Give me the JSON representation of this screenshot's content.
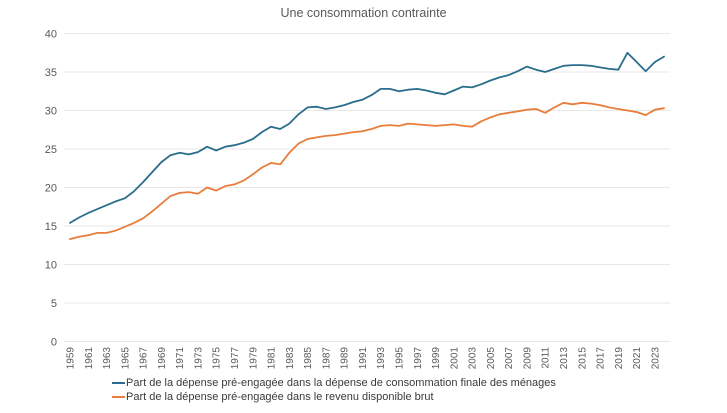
{
  "chart_data": {
    "type": "line",
    "title": "Une consommation contrainte",
    "x": [
      1959,
      1960,
      1961,
      1962,
      1963,
      1964,
      1965,
      1966,
      1967,
      1968,
      1969,
      1970,
      1971,
      1972,
      1973,
      1974,
      1975,
      1976,
      1977,
      1978,
      1979,
      1980,
      1981,
      1982,
      1983,
      1984,
      1985,
      1986,
      1987,
      1988,
      1989,
      1990,
      1991,
      1992,
      1993,
      1994,
      1995,
      1996,
      1997,
      1998,
      1999,
      2000,
      2001,
      2002,
      2003,
      2004,
      2005,
      2006,
      2007,
      2008,
      2009,
      2010,
      2011,
      2012,
      2013,
      2014,
      2015,
      2016,
      2017,
      2018,
      2019,
      2020,
      2021,
      2022,
      2023,
      2024
    ],
    "series": [
      {
        "name": "Part de la dépense pré-engagée dans la dépense de consommation finale des ménages",
        "color": "#2a6d8c",
        "values": [
          15.4,
          16.1,
          16.7,
          17.2,
          17.7,
          18.2,
          18.6,
          19.5,
          20.7,
          22.0,
          23.3,
          24.2,
          24.5,
          24.3,
          24.6,
          25.3,
          24.8,
          25.3,
          25.5,
          25.8,
          26.3,
          27.2,
          27.9,
          27.6,
          28.3,
          29.5,
          30.4,
          30.5,
          30.2,
          30.4,
          30.7,
          31.1,
          31.4,
          32.0,
          32.8,
          32.8,
          32.5,
          32.7,
          32.8,
          32.6,
          32.3,
          32.1,
          32.6,
          33.1,
          33.0,
          33.4,
          33.9,
          34.3,
          34.6,
          35.1,
          35.7,
          35.3,
          35.0,
          35.4,
          35.8,
          35.9,
          35.9,
          35.8,
          35.6,
          35.4,
          35.3,
          37.5,
          36.3,
          35.1,
          36.3,
          37.0
        ]
      },
      {
        "name": "Part de la dépense pré-engagée dans le revenu disponible brut",
        "color": "#e87d3c",
        "values": [
          13.3,
          13.6,
          13.8,
          14.1,
          14.1,
          14.4,
          14.9,
          15.4,
          16.0,
          16.9,
          17.9,
          18.9,
          19.3,
          19.4,
          19.2,
          20.0,
          19.6,
          20.2,
          20.4,
          20.9,
          21.7,
          22.6,
          23.2,
          23.0,
          24.5,
          25.7,
          26.3,
          26.5,
          26.7,
          26.8,
          27.0,
          27.2,
          27.3,
          27.6,
          28.0,
          28.1,
          28.0,
          28.3,
          28.2,
          28.1,
          28.0,
          28.1,
          28.2,
          28.0,
          27.9,
          28.6,
          29.1,
          29.5,
          29.7,
          29.9,
          30.1,
          30.2,
          29.7,
          30.4,
          31.0,
          30.8,
          31.0,
          30.9,
          30.7,
          30.4,
          30.2,
          30.0,
          29.8,
          29.4,
          30.1,
          30.3
        ]
      }
    ],
    "ylim": [
      0,
      40
    ],
    "ytick_step": 5,
    "ytick_labels": [
      "0",
      "5",
      "10",
      "15",
      "20",
      "25",
      "30",
      "35",
      "40"
    ],
    "xtick_labels": [
      "1959",
      "1961",
      "1963",
      "1965",
      "1967",
      "1969",
      "1971",
      "1973",
      "1975",
      "1977",
      "1979",
      "1981",
      "1983",
      "1985",
      "1987",
      "1989",
      "1991",
      "1993",
      "1995",
      "1997",
      "1999",
      "2001",
      "2003",
      "2005",
      "2007",
      "2009",
      "2011",
      "2013",
      "2015",
      "2017",
      "2019",
      "2021",
      "2023"
    ],
    "grid": "horizontal",
    "legend_position": "bottom-left",
    "axis_label_color": "#595959",
    "grid_color": "#e7e7e7",
    "title_color": "#595959"
  }
}
